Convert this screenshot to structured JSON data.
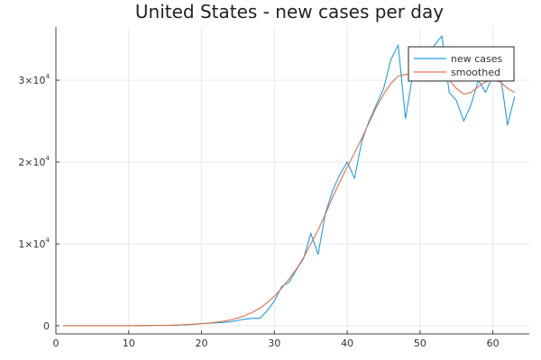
{
  "chart_data": {
    "type": "line",
    "title": "United States - new cases per day",
    "xlabel": "",
    "ylabel": "",
    "xlim": [
      0,
      65
    ],
    "ylim": [
      -1000,
      36500
    ],
    "xticks": [
      0,
      10,
      20,
      30,
      40,
      50,
      60
    ],
    "yticks": [
      {
        "value": 0,
        "mantissa": "0",
        "exponent": ""
      },
      {
        "value": 10000,
        "mantissa": "1×10",
        "exponent": "4"
      },
      {
        "value": 20000,
        "mantissa": "2×10",
        "exponent": "4"
      },
      {
        "value": 30000,
        "mantissa": "3×10",
        "exponent": "4"
      }
    ],
    "grid": true,
    "legend_position": "top-right",
    "series": [
      {
        "name": "new cases",
        "color": "#1e9ee8",
        "x": [
          1,
          2,
          3,
          4,
          5,
          6,
          7,
          8,
          9,
          10,
          11,
          12,
          13,
          14,
          15,
          16,
          17,
          18,
          19,
          20,
          21,
          22,
          23,
          24,
          25,
          26,
          27,
          28,
          29,
          30,
          31,
          32,
          33,
          34,
          35,
          36,
          37,
          38,
          39,
          40,
          41,
          42,
          43,
          44,
          45,
          46,
          47,
          48,
          49,
          50,
          51,
          52,
          53,
          54,
          55,
          56,
          57,
          58,
          59,
          60,
          61,
          62,
          63
        ],
        "y": [
          0,
          0,
          0,
          0,
          0,
          0,
          0,
          0,
          0,
          0,
          0,
          10,
          20,
          30,
          40,
          60,
          80,
          120,
          160,
          250,
          300,
          350,
          400,
          500,
          650,
          800,
          900,
          900,
          1800,
          3000,
          4800,
          5300,
          6800,
          8200,
          11300,
          8700,
          13700,
          16500,
          18500,
          20000,
          18000,
          22500,
          25000,
          27000,
          29000,
          32500,
          34300,
          25300,
          30700,
          31200,
          32500,
          34300,
          35400,
          28500,
          27500,
          25000,
          27000,
          30000,
          28500,
          30500,
          31000,
          24500,
          28000
        ]
      },
      {
        "name": "smoothed",
        "color": "#e26f46",
        "x": [
          1,
          2,
          3,
          4,
          5,
          6,
          7,
          8,
          9,
          10,
          11,
          12,
          13,
          14,
          15,
          16,
          17,
          18,
          19,
          20,
          21,
          22,
          23,
          24,
          25,
          26,
          27,
          28,
          29,
          30,
          31,
          32,
          33,
          34,
          35,
          36,
          37,
          38,
          39,
          40,
          41,
          42,
          43,
          44,
          45,
          46,
          47,
          48,
          49,
          50,
          51,
          52,
          53,
          54,
          55,
          56,
          57,
          58,
          59,
          60,
          61,
          62,
          63
        ],
        "y": [
          0,
          0,
          0,
          0,
          0,
          0,
          0,
          0,
          0,
          0,
          10,
          20,
          30,
          40,
          50,
          70,
          100,
          140,
          190,
          250,
          320,
          420,
          550,
          720,
          950,
          1250,
          1650,
          2150,
          2800,
          3600,
          4600,
          5700,
          6900,
          8300,
          10000,
          11700,
          13600,
          15700,
          17600,
          19400,
          21100,
          22900,
          24800,
          26700,
          28300,
          29600,
          30500,
          30700,
          30800,
          30700,
          30700,
          30900,
          31000,
          30000,
          29000,
          28300,
          28500,
          29200,
          29800,
          30000,
          29800,
          29000,
          28500
        ]
      }
    ]
  }
}
